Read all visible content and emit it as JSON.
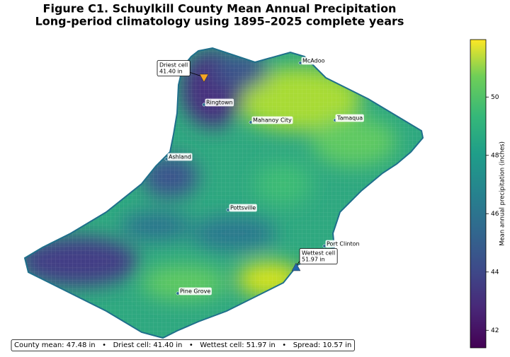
{
  "title": "Figure C1. Schuylkill County Mean Annual Precipitation",
  "subtitle": "Long-period climatology using 1895–2025 complete years",
  "towns": [
    "McAdoo",
    "Ringtown",
    "Mahanoy City",
    "Tamaqua",
    "Ashland",
    "Pottsville",
    "Port Clinton",
    "Pine Grove"
  ],
  "annotations": {
    "driest": {
      "label": "Driest cell",
      "value": 41.4,
      "value_label": "41.40 in",
      "color": "#f5a623"
    },
    "wettest": {
      "label": "Wettest cell",
      "value": 51.97,
      "value_label": "51.97 in",
      "color": "#2166ac"
    }
  },
  "colorbar": {
    "label": "Mean annual precipitation (inches)",
    "lim": [
      41.4,
      51.97
    ],
    "ticks": [
      42,
      44,
      46,
      48,
      50
    ],
    "colormap": "viridis"
  },
  "footer": "County mean: 47.48 in   •   Driest cell: 41.40 in   •   Wettest cell: 51.97 in   •   Spread: 10.57 in"
}
